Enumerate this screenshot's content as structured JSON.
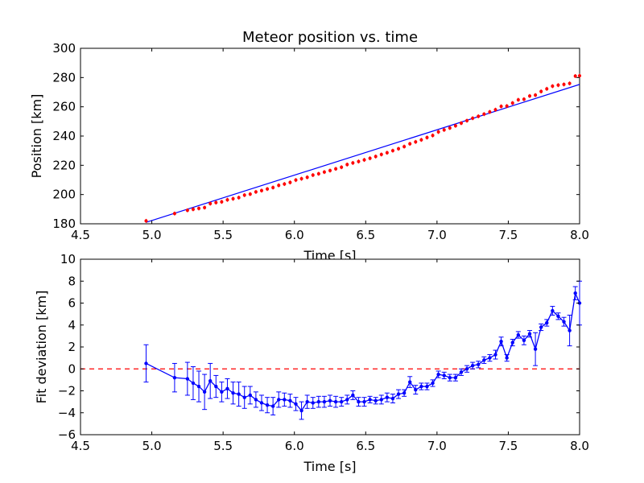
{
  "chart_data": [
    {
      "type": "scatter",
      "title": "Meteor position vs. time",
      "xlabel": "Time [s]",
      "ylabel": "Position [km]",
      "xlim": [
        4.5,
        8.0
      ],
      "ylim": [
        180,
        300
      ],
      "xticks": [
        "4.5",
        "5.0",
        "5.5",
        "6.0",
        "6.5",
        "7.0",
        "7.5",
        "8.0"
      ],
      "yticks": [
        "180",
        "200",
        "220",
        "240",
        "260",
        "280",
        "300"
      ],
      "grid": false,
      "marker_color": "#ff0000",
      "fit_color": "#0000ff",
      "fit_line": {
        "x": [
          4.96,
          8.0
        ],
        "y": [
          181.0,
          275.3
        ]
      },
      "series": [
        {
          "points": [
            [
              4.96,
              182.0
            ],
            [
              5.16,
              187.0
            ],
            [
              5.25,
              189.2
            ],
            [
              5.29,
              189.9
            ],
            [
              5.33,
              190.5
            ],
            [
              5.37,
              191.1
            ],
            [
              5.41,
              193.8
            ],
            [
              5.45,
              194.5
            ],
            [
              5.49,
              195.0
            ],
            [
              5.53,
              196.4
            ],
            [
              5.57,
              197.1
            ],
            [
              5.61,
              197.9
            ],
            [
              5.65,
              199.6
            ],
            [
              5.69,
              200.3
            ],
            [
              5.73,
              201.8
            ],
            [
              5.77,
              202.7
            ],
            [
              5.81,
              203.8
            ],
            [
              5.85,
              204.8
            ],
            [
              5.89,
              206.3
            ],
            [
              5.93,
              207.2
            ],
            [
              5.97,
              208.3
            ],
            [
              6.01,
              209.9
            ],
            [
              6.05,
              210.8
            ],
            [
              6.09,
              211.8
            ],
            [
              6.13,
              213.3
            ],
            [
              6.17,
              214.2
            ],
            [
              6.21,
              215.4
            ],
            [
              6.25,
              216.4
            ],
            [
              6.29,
              217.6
            ],
            [
              6.33,
              218.7
            ],
            [
              6.37,
              220.5
            ],
            [
              6.41,
              221.6
            ],
            [
              6.45,
              222.6
            ],
            [
              6.49,
              223.7
            ],
            [
              6.53,
              224.8
            ],
            [
              6.57,
              226.0
            ],
            [
              6.61,
              227.4
            ],
            [
              6.65,
              228.6
            ],
            [
              6.69,
              230.0
            ],
            [
              6.73,
              231.3
            ],
            [
              6.77,
              232.8
            ],
            [
              6.81,
              234.7
            ],
            [
              6.85,
              236.0
            ],
            [
              6.89,
              237.4
            ],
            [
              6.93,
              239.0
            ],
            [
              6.97,
              240.4
            ],
            [
              7.01,
              242.8
            ],
            [
              7.05,
              244.2
            ],
            [
              7.09,
              245.5
            ],
            [
              7.13,
              247.0
            ],
            [
              7.17,
              248.8
            ],
            [
              7.21,
              250.5
            ],
            [
              7.25,
              252.2
            ],
            [
              7.29,
              253.5
            ],
            [
              7.33,
              255.0
            ],
            [
              7.37,
              256.5
            ],
            [
              7.41,
              258.0
            ],
            [
              7.45,
              260.3
            ],
            [
              7.49,
              260.5
            ],
            [
              7.53,
              262.6
            ],
            [
              7.57,
              264.8
            ],
            [
              7.61,
              265.2
            ],
            [
              7.65,
              267.4
            ],
            [
              7.69,
              268.0
            ],
            [
              7.73,
              270.5
            ],
            [
              7.77,
              272.3
            ],
            [
              7.81,
              274.1
            ],
            [
              7.85,
              274.8
            ],
            [
              7.89,
              275.3
            ],
            [
              7.93,
              276.0
            ],
            [
              7.97,
              281.0
            ],
            [
              8.0,
              281.2
            ]
          ]
        }
      ]
    },
    {
      "type": "line",
      "title": "",
      "xlabel": "Time [s]",
      "ylabel": "Fit deviation [km]",
      "xlim": [
        4.5,
        8.0
      ],
      "ylim": [
        -6,
        10
      ],
      "xticks": [
        "4.5",
        "5.0",
        "5.5",
        "6.0",
        "6.5",
        "7.0",
        "7.5",
        "8.0"
      ],
      "yticks": [
        "−6",
        "−4",
        "−2",
        "0",
        "2",
        "4",
        "6",
        "8",
        "10"
      ],
      "grid": false,
      "line_color": "#0000ff",
      "zero_line_color": "#ff0000",
      "zero_line_y": 0,
      "series": [
        {
          "x": [
            4.96,
            5.16,
            5.25,
            5.29,
            5.33,
            5.37,
            5.41,
            5.45,
            5.49,
            5.53,
            5.57,
            5.61,
            5.65,
            5.69,
            5.73,
            5.77,
            5.81,
            5.85,
            5.89,
            5.93,
            5.97,
            6.01,
            6.05,
            6.09,
            6.13,
            6.17,
            6.21,
            6.25,
            6.29,
            6.33,
            6.37,
            6.41,
            6.45,
            6.49,
            6.53,
            6.57,
            6.61,
            6.65,
            6.69,
            6.73,
            6.77,
            6.81,
            6.85,
            6.89,
            6.93,
            6.97,
            7.01,
            7.05,
            7.09,
            7.13,
            7.17,
            7.21,
            7.25,
            7.29,
            7.33,
            7.37,
            7.41,
            7.45,
            7.49,
            7.53,
            7.57,
            7.61,
            7.65,
            7.69,
            7.73,
            7.77,
            7.81,
            7.85,
            7.89,
            7.93,
            7.97,
            8.0
          ],
          "y": [
            0.5,
            -0.8,
            -0.9,
            -1.3,
            -1.6,
            -2.1,
            -1.1,
            -1.6,
            -2.1,
            -1.8,
            -2.2,
            -2.3,
            -2.6,
            -2.4,
            -2.8,
            -3.1,
            -3.3,
            -3.4,
            -2.8,
            -2.8,
            -2.9,
            -3.2,
            -3.8,
            -3.0,
            -3.1,
            -3.0,
            -3.0,
            -2.9,
            -3.0,
            -3.0,
            -2.8,
            -2.4,
            -3.0,
            -3.0,
            -2.8,
            -2.9,
            -2.8,
            -2.6,
            -2.7,
            -2.3,
            -2.2,
            -1.2,
            -1.9,
            -1.6,
            -1.6,
            -1.3,
            -0.5,
            -0.6,
            -0.8,
            -0.8,
            -0.3,
            0.0,
            0.3,
            0.4,
            0.8,
            1.0,
            1.3,
            2.5,
            1.0,
            2.4,
            3.1,
            2.6,
            3.2,
            1.8,
            3.8,
            4.2,
            5.3,
            4.8,
            4.3,
            3.5,
            6.9,
            6.0
          ],
          "err": [
            1.7,
            1.3,
            1.5,
            1.5,
            1.4,
            1.6,
            1.6,
            1.0,
            0.9,
            0.9,
            1.0,
            1.1,
            1.0,
            0.8,
            0.7,
            0.7,
            0.7,
            0.8,
            0.7,
            0.6,
            0.6,
            0.6,
            0.8,
            0.6,
            0.5,
            0.5,
            0.5,
            0.5,
            0.5,
            0.4,
            0.4,
            0.4,
            0.4,
            0.4,
            0.3,
            0.3,
            0.4,
            0.4,
            0.4,
            0.4,
            0.3,
            0.5,
            0.4,
            0.3,
            0.3,
            0.3,
            0.3,
            0.3,
            0.3,
            0.3,
            0.3,
            0.3,
            0.3,
            0.3,
            0.3,
            0.3,
            0.4,
            0.4,
            0.3,
            0.3,
            0.3,
            0.4,
            0.3,
            1.5,
            0.3,
            0.3,
            0.4,
            0.3,
            0.4,
            1.4,
            0.6,
            2.0
          ]
        }
      ]
    }
  ]
}
